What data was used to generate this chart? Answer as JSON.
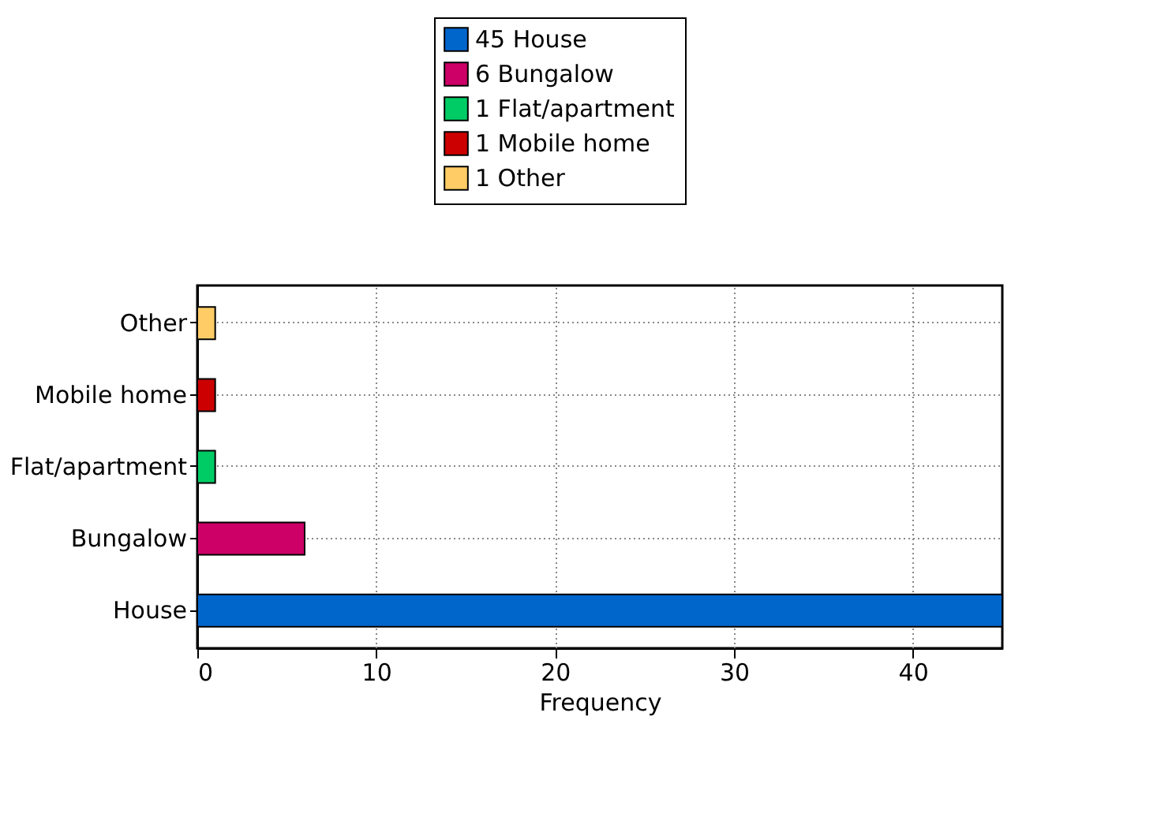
{
  "chart_data": {
    "type": "bar",
    "orientation": "horizontal",
    "categories": [
      "Other",
      "Mobile home",
      "Flat/apartment",
      "Bungalow",
      "House"
    ],
    "series": [
      {
        "name": "45 House",
        "color": "#0066cc",
        "values": [
          null,
          null,
          null,
          null,
          45
        ]
      },
      {
        "name": "6 Bungalow",
        "color": "#cc0066",
        "values": [
          null,
          null,
          null,
          6,
          null
        ]
      },
      {
        "name": "1 Flat/apartment",
        "color": "#00cc66",
        "values": [
          null,
          null,
          1,
          null,
          null
        ]
      },
      {
        "name": "1 Mobile home",
        "color": "#cc0000",
        "values": [
          null,
          1,
          null,
          null,
          null
        ]
      },
      {
        "name": "1 Other",
        "color": "#ffcc66",
        "values": [
          1,
          null,
          null,
          null,
          null
        ]
      }
    ],
    "xlabel": "Frequency",
    "xlim": [
      0,
      45
    ],
    "xticks": [
      0,
      10,
      20,
      30,
      40
    ],
    "grid": true,
    "legend": "top"
  }
}
